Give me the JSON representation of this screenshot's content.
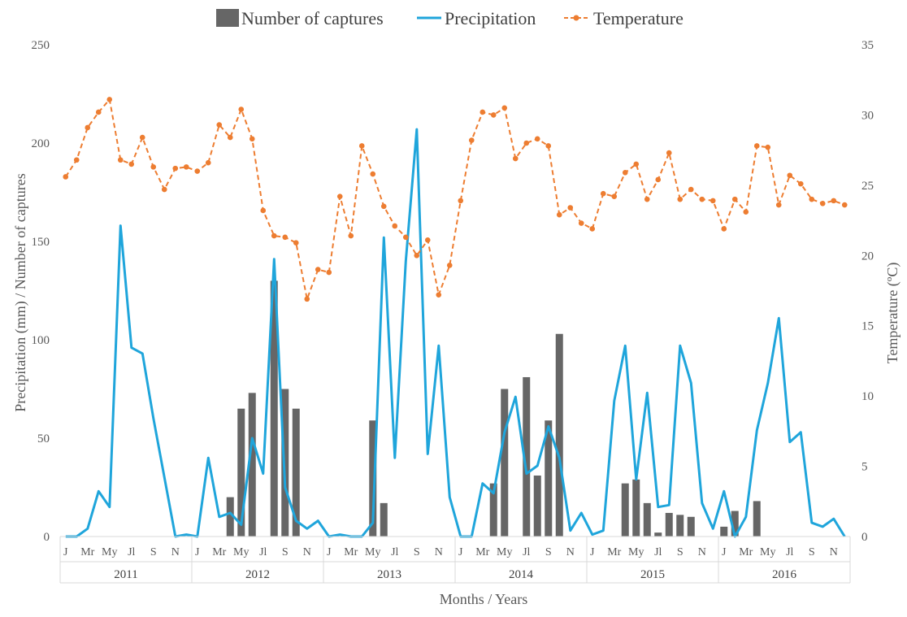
{
  "chart_data": {
    "type": "bar+line",
    "title": "",
    "xlabel": "Months / Years",
    "ylabel_left": "Precipitation (mm) / Number  of captures",
    "ylabel_right": "Temperature (ºC)",
    "ylim_left": [
      0,
      250
    ],
    "ylim_right": [
      0,
      35
    ],
    "yticks_left": [
      "0",
      "50",
      "100",
      "150",
      "200",
      "250"
    ],
    "yticks_right": [
      "0",
      "5",
      "10",
      "15",
      "20",
      "25",
      "30",
      "35"
    ],
    "legend_position": "top",
    "grid": false,
    "month_labels": [
      "J",
      "",
      "Mr",
      "",
      "My",
      "",
      "Jl",
      "",
      "S",
      "",
      "N",
      ""
    ],
    "years": [
      "2011",
      "2012",
      "2013",
      "2014",
      "2015",
      "2016"
    ],
    "series": [
      {
        "name": "Number of captures",
        "kind": "bar",
        "axis": "left",
        "color": "#666666",
        "values": [
          0,
          0,
          0,
          0,
          0,
          0,
          0,
          0,
          0,
          0,
          0,
          0,
          0,
          0,
          0,
          20,
          65,
          73,
          0,
          130,
          75,
          65,
          0,
          0,
          0,
          0,
          0,
          0,
          59,
          17,
          0,
          0,
          0,
          0,
          0,
          0,
          0,
          0,
          0,
          27,
          75,
          0,
          81,
          31,
          59,
          103,
          0,
          0,
          0,
          0,
          0,
          27,
          29,
          17,
          2,
          12,
          11,
          10,
          0,
          0,
          5,
          13,
          0,
          18,
          0,
          0,
          0,
          0,
          0,
          0,
          0,
          0
        ]
      },
      {
        "name": "Precipitation",
        "kind": "line",
        "axis": "left",
        "color": "#1FA5DB",
        "values": [
          0,
          0,
          4,
          23,
          15,
          158,
          96,
          93,
          60,
          30,
          0,
          1,
          0,
          40,
          10,
          12,
          6,
          50,
          32,
          141,
          25,
          8,
          4,
          8,
          0,
          1,
          0,
          0,
          7,
          152,
          40,
          140,
          207,
          42,
          97,
          20,
          0,
          0,
          27,
          22,
          53,
          71,
          32,
          36,
          56,
          40,
          3,
          12,
          1,
          3,
          69,
          97,
          29,
          73,
          15,
          16,
          97,
          78,
          17,
          4,
          23,
          0,
          10,
          54,
          78,
          111,
          48,
          53,
          7,
          5,
          9,
          0
        ]
      },
      {
        "name": "Temperature",
        "kind": "line-dashed",
        "axis": "right",
        "color": "#ED7D31",
        "values": [
          25.6,
          26.8,
          29.1,
          30.2,
          31.1,
          26.8,
          26.5,
          28.4,
          26.3,
          24.7,
          26.2,
          26.3,
          26.0,
          26.6,
          29.3,
          28.4,
          30.4,
          28.3,
          23.2,
          21.4,
          21.3,
          20.9,
          16.9,
          19.0,
          18.8,
          24.2,
          21.4,
          27.8,
          25.8,
          23.5,
          22.1,
          21.3,
          20.0,
          21.1,
          17.2,
          19.3,
          23.9,
          28.2,
          30.2,
          30.0,
          30.5,
          26.9,
          28.0,
          28.3,
          27.8,
          22.9,
          23.4,
          22.3,
          21.9,
          24.4,
          24.2,
          25.9,
          26.5,
          24.0,
          25.4,
          27.3,
          24.0,
          24.7,
          24.0,
          23.9,
          21.9,
          24.0,
          23.1,
          27.8,
          27.7,
          23.6,
          25.7,
          25.1,
          24.0,
          23.7,
          23.9,
          23.6
        ]
      }
    ]
  }
}
